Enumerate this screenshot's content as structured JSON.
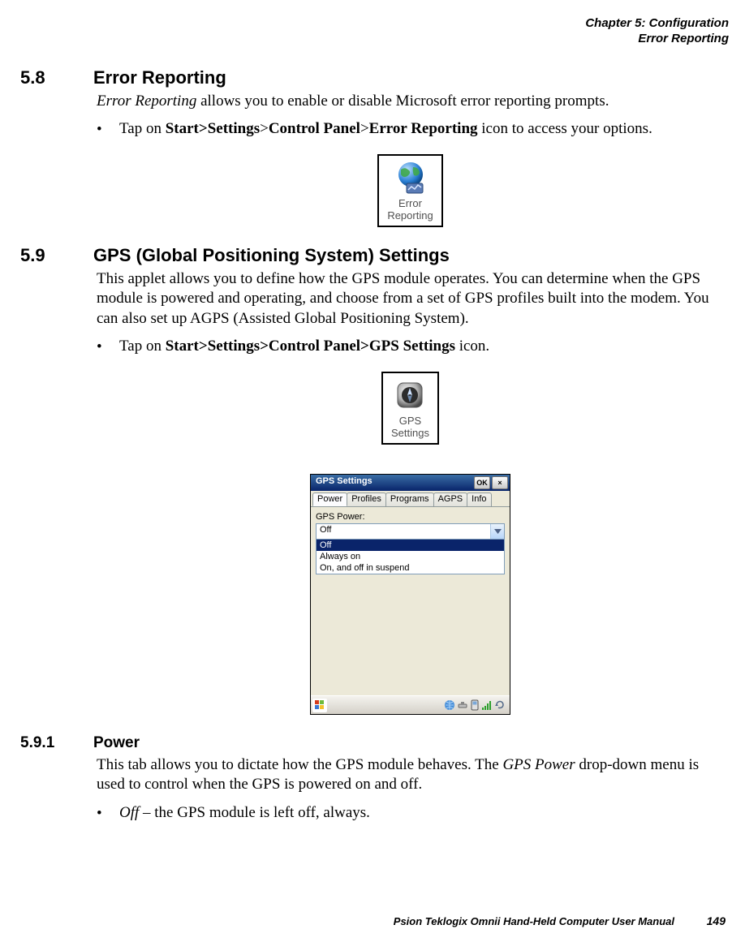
{
  "header": {
    "line1": "Chapter 5: Configuration",
    "line2": "Error Reporting"
  },
  "sec58": {
    "num": "5.8",
    "title": "Error Reporting",
    "intro_em": "Error Reporting",
    "intro_rest": " allows you to enable or disable Microsoft error reporting prompts.",
    "bullet_pre": "Tap on ",
    "bullet_b1": "Start>Settings",
    "bullet_mid1": ">",
    "bullet_b2": "Control Panel",
    "bullet_mid2": ">",
    "bullet_b3": "Error Reporting",
    "bullet_post": " icon to access your options."
  },
  "icon_error": {
    "label_l1": "Error",
    "label_l2": "Reporting"
  },
  "sec59": {
    "num": "5.9",
    "title": "GPS (Global Positioning System) Settings",
    "p1": "This applet allows you to define how the GPS module operates. You can determine when the GPS module is powered and operating, and choose from a set of GPS profiles built into the modem. You can also set up AGPS (Assisted Global Positioning System).",
    "bullet_pre": "Tap on ",
    "bullet_b": "Start>Settings>Control Panel>GPS Settings",
    "bullet_post": " icon."
  },
  "icon_gps": {
    "label_l1": "GPS",
    "label_l2": "Settings"
  },
  "window": {
    "title": "GPS Settings",
    "ok": "OK",
    "close": "×",
    "tabs": [
      "Power",
      "Profiles",
      "Programs",
      "AGPS",
      "Info"
    ],
    "active_tab_index": 0,
    "field_label": "GPS Power:",
    "combo_value": "Off",
    "options": [
      "Off",
      "Always on",
      "On, and off in suspend"
    ],
    "selected_option_index": 0
  },
  "sec591": {
    "num": "5.9.1",
    "title": "Power",
    "p_pre": "This tab allows you to dictate how the GPS module behaves. The ",
    "p_em": "GPS Power",
    "p_post": " drop-down menu is used to control when the GPS is powered on and off.",
    "bullet_em": "Off",
    "bullet_rest": " – the GPS module is left off, always."
  },
  "footer": {
    "text": "Psion Teklogix Omnii Hand-Held Computer User Manual",
    "page": "149"
  },
  "colors": {
    "titlebar_top": "#3a6ea5",
    "titlebar_bottom": "#08246b",
    "win_face": "#ece9d8",
    "selection": "#0a246a"
  }
}
